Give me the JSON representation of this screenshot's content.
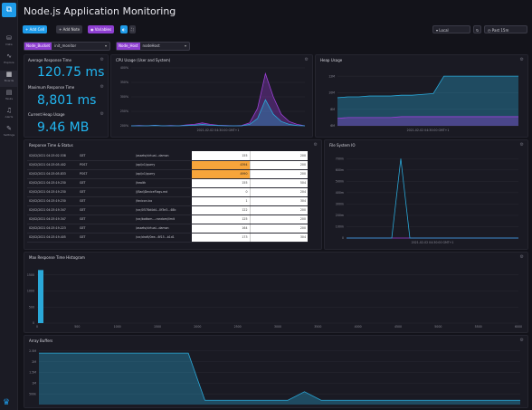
{
  "app": {
    "title": "Node.js Application Monitoring",
    "logo_glyph": "⧉"
  },
  "sidebar": {
    "items": [
      {
        "label": "Data",
        "icon": "database-icon",
        "glyph": "⛁"
      },
      {
        "label": "Explore",
        "icon": "graph-icon",
        "glyph": "∿"
      },
      {
        "label": "Boards",
        "icon": "dashboards-icon",
        "glyph": "▦"
      },
      {
        "label": "Tasks",
        "icon": "calendar-icon",
        "glyph": "▤"
      },
      {
        "label": "Alerts",
        "icon": "bell-icon",
        "glyph": "♫"
      },
      {
        "label": "Settings",
        "icon": "wrench-icon",
        "glyph": "✎"
      }
    ],
    "crown_glyph": "♛"
  },
  "toolbar": {
    "add_cell": "+ Add Cell",
    "add_note": "+ Add Note",
    "variables": "◉ Variables",
    "light_dark": "◐",
    "present": "⛶",
    "refresh_interval": "▾ Local",
    "refresh_icon": "↻",
    "time_range": "◷ Past 15m"
  },
  "variables": [
    {
      "name": "Node_Bucket",
      "value": "init_monitor"
    },
    {
      "name": "Node_Host",
      "value": "nodeHost"
    }
  ],
  "colors": {
    "accent": "#1e9be9",
    "value": "#22b7f2",
    "line_cyan": "#2aa8d8",
    "line_purple": "#9b3fd6",
    "highlight": "#f7a53b"
  },
  "stats": [
    {
      "title": "Average Response Time",
      "value": "120.75 ms"
    },
    {
      "title": "Maximum Response Time",
      "value": "8,801 ms"
    },
    {
      "title": "Current Heap Usage",
      "value": "9.46 MB"
    }
  ],
  "cpu": {
    "title": "CPU Usage (User and System)",
    "y_ticks": [
      "400%",
      "350%",
      "300%",
      "250%",
      "200%"
    ],
    "x_label": "2021-02-02 04:30:00 GMT+1",
    "ylim": [
      200,
      400
    ]
  },
  "heap": {
    "title": "Heap Usage",
    "y_ticks": [
      "12M",
      "10M",
      "8M",
      "6M"
    ],
    "x_label": "2021-02-02 04:30:00 GMT+1",
    "ylim": [
      6,
      13
    ]
  },
  "response_table": {
    "title": "Response Time & Status",
    "rows": [
      [
        "02/02/2021 04:25:02.538",
        "GET",
        "/assets/virtual...damon",
        "155",
        "200"
      ],
      [
        "02/02/2021 04:25:05.402",
        "POST",
        "/api/v1/query",
        "4394",
        "200"
      ],
      [
        "02/02/2021 04:25:05.833",
        "POST",
        "/api/v1/query",
        "4990",
        "200"
      ],
      [
        "02/02/2021 04:25:19.230",
        "GET",
        "/health",
        "155",
        "504"
      ],
      [
        "02/02/2021 04:25:19.230",
        "GET",
        "/(Bad)DeviceFlags.md",
        "0",
        "204"
      ],
      [
        "02/02/2021 04:25:19.230",
        "GET",
        "/favicon.ico",
        "1",
        "304"
      ],
      [
        "02/02/2021 04:25:19.347",
        "GET",
        "/src/0578d4d4...0f3e3...48b",
        "122",
        "200"
      ],
      [
        "02/02/2021 04:25:19.347",
        "GET",
        "/src/bottom-...random/limit",
        "125",
        "200"
      ],
      [
        "02/02/2021 04:25:19.223",
        "GET",
        "/assets/virtual...damon",
        "164",
        "200"
      ],
      [
        "02/02/2021 04:25:19.405",
        "GET",
        "/src/draft/0ee...6f15...b1d1",
        "173",
        "304"
      ]
    ],
    "highlighted_rows": [
      1,
      2
    ]
  },
  "filesystem": {
    "title": "File System IO",
    "y_ticks": [
      "700m",
      "600m",
      "500m",
      "400m",
      "300m",
      "200m",
      "100m",
      "0"
    ],
    "x_label": "2021-02-02 04:30:00 GMT+1",
    "ylim": [
      0,
      750
    ]
  },
  "histogram": {
    "title": "Max Response Time Histogram",
    "y_ticks": [
      "1500",
      "1000",
      "500",
      "0"
    ],
    "x_ticks": [
      "0",
      "500",
      "1000",
      "1500",
      "2000",
      "2500",
      "3000",
      "3500",
      "4000",
      "4500",
      "5000",
      "5500",
      "6000"
    ],
    "ylim": [
      0,
      1800
    ]
  },
  "buffers": {
    "title": "Array Buffers",
    "y_ticks": [
      "2.5M",
      "2M",
      "1.5M",
      "1M",
      "500k"
    ],
    "ylim": [
      0,
      2.7
    ]
  },
  "chart_data": [
    {
      "type": "line",
      "title": "CPU Usage (User and System)",
      "ylim": [
        200,
        400
      ],
      "series": [
        {
          "values": [
            200,
            201,
            200,
            202,
            200,
            201,
            200,
            203,
            205,
            210,
            205,
            202,
            201,
            200,
            201,
            210,
            260,
            380,
            300,
            240,
            215,
            205,
            200
          ]
        },
        {
          "values": [
            200,
            200,
            200,
            201,
            200,
            200,
            200,
            201,
            202,
            205,
            202,
            201,
            200,
            200,
            200,
            205,
            225,
            290,
            240,
            215,
            205,
            201,
            200
          ]
        }
      ]
    },
    {
      "type": "area",
      "title": "Heap Usage",
      "ylim": [
        6,
        13
      ],
      "series": [
        {
          "values": [
            9.4,
            9.5,
            9.5,
            9.6,
            9.6,
            9.6,
            9.7,
            9.7,
            9.8,
            9.9,
            12.0,
            12.0,
            12.0,
            12.0,
            12.0,
            12.0,
            12.0,
            12.0
          ]
        },
        {
          "values": [
            6.9,
            7.0,
            7.0,
            7.0,
            7.0,
            7.0,
            7.1,
            7.1,
            7.1,
            7.1,
            7.1,
            7.1,
            7.1,
            7.1,
            7.1,
            7.1,
            7.1,
            7.1
          ]
        }
      ]
    },
    {
      "type": "line",
      "title": "File System IO",
      "ylim": [
        0,
        750
      ],
      "series": [
        {
          "values": [
            0,
            0,
            0,
            0,
            0,
            0,
            0,
            0,
            0,
            0,
            0,
            0,
            0,
            0,
            0,
            0,
            0,
            0,
            0,
            0
          ]
        },
        {
          "values": [
            0,
            0,
            0,
            0,
            0,
            0,
            700,
            0,
            0,
            0,
            0,
            0,
            0,
            0,
            0,
            0,
            0,
            0,
            0,
            0
          ]
        }
      ]
    },
    {
      "type": "bar",
      "title": "Max Response Time Histogram",
      "categories": [
        "0"
      ],
      "values": [
        1650
      ],
      "ylim": [
        0,
        1800
      ]
    },
    {
      "type": "area",
      "title": "Array Buffers",
      "ylim": [
        0,
        2.7
      ],
      "series": [
        {
          "values": [
            2.4,
            2.4,
            2.4,
            2.4,
            2.4,
            2.4,
            2.4,
            2.4,
            2.4,
            2.4,
            0.2,
            0.2,
            0.2,
            0.2,
            0.2,
            0.2,
            0.6,
            0.2,
            0.2,
            0.2,
            0.2,
            0.2,
            0.2,
            0.2,
            0.2,
            0.2,
            0.2,
            0.2,
            0.2,
            0.2
          ]
        }
      ]
    }
  ]
}
